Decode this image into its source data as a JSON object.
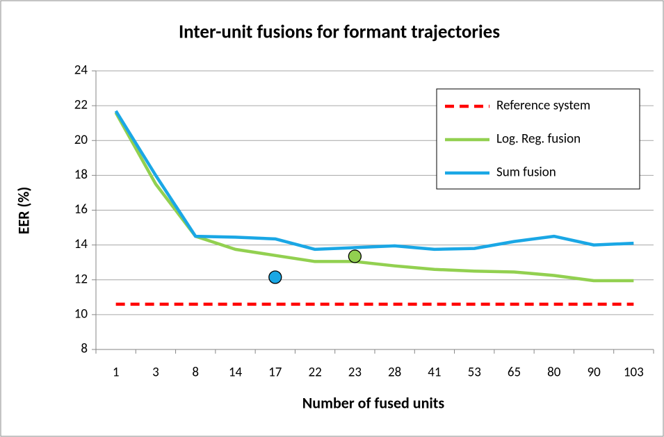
{
  "chart_data": {
    "type": "line",
    "title": "Inter-unit fusions for formant trajectories",
    "x_label": "Number of fused units",
    "y_label": "EER (%)",
    "categories": [
      "1",
      "3",
      "8",
      "14",
      "17",
      "22",
      "23",
      "28",
      "41",
      "53",
      "65",
      "80",
      "90",
      "103"
    ],
    "series": [
      {
        "name": "Reference system",
        "color": "#ff0000",
        "dashed": true,
        "values": [
          10.6,
          10.6,
          10.6,
          10.6,
          10.6,
          10.6,
          10.6,
          10.6,
          10.6,
          10.6,
          10.6,
          10.6,
          10.6,
          10.6
        ]
      },
      {
        "name": "Log. Reg. fusion",
        "color": "#92d050",
        "dashed": false,
        "values": [
          21.6,
          17.5,
          14.5,
          13.75,
          13.4,
          13.05,
          13.05,
          12.8,
          12.6,
          12.5,
          12.45,
          12.25,
          11.95,
          11.95
        ]
      },
      {
        "name": "Sum fusion",
        "color": "#1aa7e5",
        "dashed": false,
        "values": [
          21.7,
          18,
          14.5,
          14.45,
          14.35,
          13.75,
          13.85,
          13.95,
          13.75,
          13.8,
          14.2,
          14.5,
          14.0,
          14.1
        ]
      }
    ],
    "points": [
      {
        "x": "17",
        "value": 12.15,
        "color": "#1aa7e5"
      },
      {
        "x": "23",
        "value": 13.35,
        "color": "#92d050"
      }
    ],
    "ylim": [
      8,
      24
    ],
    "yticks": [
      8,
      10,
      12,
      14,
      16,
      18,
      20,
      22,
      24
    ],
    "grid": true,
    "legend": "upper right"
  }
}
